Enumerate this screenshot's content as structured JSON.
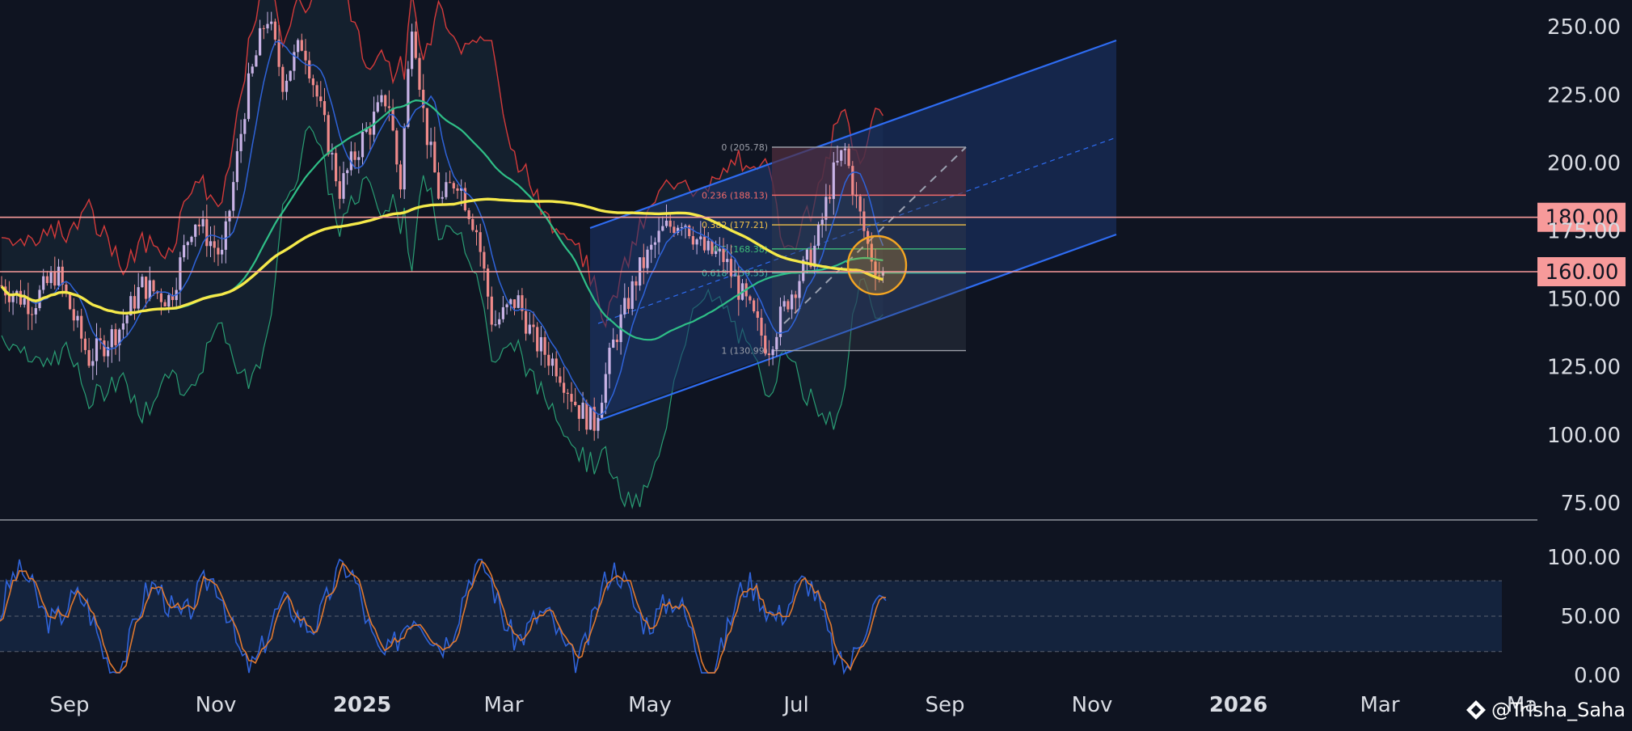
{
  "chart_data": [
    {
      "type": "candlestick",
      "title": "",
      "price_axis": {
        "tick_labels": [
          "250.00",
          "225.00",
          "200.00",
          "175.00",
          "150.00",
          "125.00",
          "100.00",
          "75.00"
        ],
        "ticks": [
          250,
          225,
          200,
          175,
          150,
          125,
          100,
          75
        ]
      },
      "time_axis": {
        "labels": [
          {
            "text": "Sep",
            "bold": false
          },
          {
            "text": "Nov",
            "bold": false
          },
          {
            "text": "2025",
            "bold": true
          },
          {
            "text": "Mar",
            "bold": false
          },
          {
            "text": "May",
            "bold": false
          },
          {
            "text": "Jul",
            "bold": false
          },
          {
            "text": "Sep",
            "bold": false
          },
          {
            "text": "Nov",
            "bold": false
          },
          {
            "text": "2026",
            "bold": true
          },
          {
            "text": "Mar",
            "bold": false
          },
          {
            "text": "Ma",
            "bold": false
          }
        ]
      },
      "horizontal_levels": [
        {
          "value": 180,
          "label": "180.00",
          "color": "#f79a9a"
        },
        {
          "value": 160,
          "label": "160.00",
          "color": "#f79a9a"
        }
      ],
      "fibonacci": [
        {
          "ratio": "0",
          "price": 205.78,
          "label": "0 (205.78)",
          "color": "#9b9ea8"
        },
        {
          "ratio": "0.236",
          "price": 188.13,
          "label": "0.236 (188.13)",
          "color": "#f06a6a"
        },
        {
          "ratio": "0.382",
          "price": 177.21,
          "label": "0.382 (177.21)",
          "color": "#f0c04a"
        },
        {
          "ratio": "0.5",
          "price": 168.38,
          "label": "0.5 (168.38)",
          "color": "#3fbf7a"
        },
        {
          "ratio": "0.618",
          "price": 159.55,
          "label": "0.618 (159.55)",
          "color": "#3fbfa8"
        },
        {
          "ratio": "1",
          "price": 130.99,
          "label": "1 (130.99)",
          "color": "#9b9ea8"
        }
      ],
      "colors": {
        "background": "#0f1421",
        "candle_up": "#c9b3e6",
        "candle_down": "#f08a8a",
        "ma_yellow": "#f5e94a",
        "ma_green": "#2fbf87",
        "ma_blue": "#2f63d9",
        "band_red": "#d43a3a",
        "channel": "#2e6cf2",
        "highlight_circle": "#f5a623"
      },
      "legend": "none",
      "grid": false
    },
    {
      "type": "line",
      "title": "",
      "y_axis": {
        "tick_labels": [
          "100.00",
          "50.00",
          "0.00"
        ],
        "ticks": [
          100,
          50,
          0
        ]
      },
      "band": {
        "upper": 80,
        "lower": 20
      },
      "series": [],
      "colors": {
        "k_line": "#2f63d9",
        "d_line": "#e0782e",
        "band_fill": "#14233d"
      }
    }
  ],
  "watermark": {
    "text": "@Trisha_Saha",
    "icon": "diamond-logo-icon"
  }
}
